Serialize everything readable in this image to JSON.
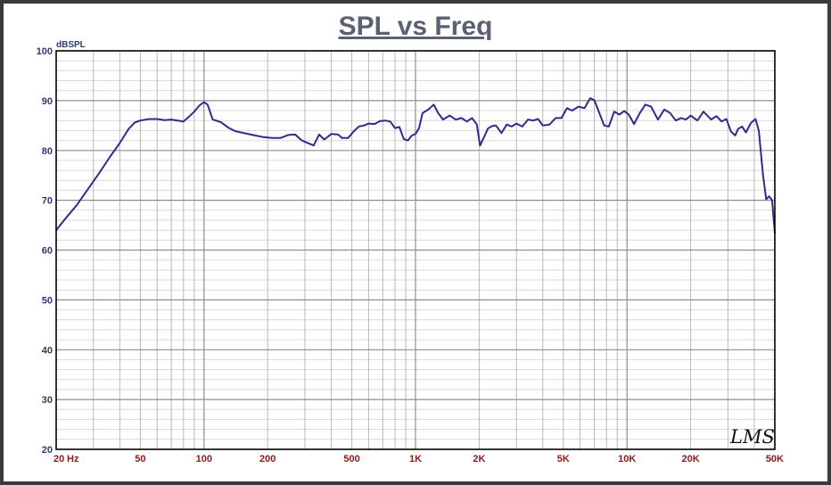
{
  "chart_data": {
    "type": "line",
    "title": "SPL vs Freq",
    "ylabel": "dBSPL",
    "x_unit": "Hz",
    "x_scale": "log",
    "xlim": [
      20,
      50000
    ],
    "ylim": [
      20,
      100
    ],
    "y_ticks": [
      20,
      30,
      40,
      50,
      60,
      70,
      80,
      90,
      100
    ],
    "x_ticks": [
      {
        "value": 20,
        "label": "20"
      },
      {
        "value": 50,
        "label": "50"
      },
      {
        "value": 100,
        "label": "100"
      },
      {
        "value": 200,
        "label": "200"
      },
      {
        "value": 500,
        "label": "500"
      },
      {
        "value": 1000,
        "label": "1K"
      },
      {
        "value": 2000,
        "label": "2K"
      },
      {
        "value": 5000,
        "label": "5K"
      },
      {
        "value": 10000,
        "label": "10K"
      },
      {
        "value": 20000,
        "label": "20K"
      },
      {
        "value": 50000,
        "label": "50K"
      }
    ],
    "grid": true,
    "series": [
      {
        "color": "#2e2e8a",
        "points": [
          [
            20,
            64.0
          ],
          [
            22,
            66.2
          ],
          [
            25,
            69.0
          ],
          [
            28,
            72.0
          ],
          [
            32,
            75.5
          ],
          [
            36,
            78.8
          ],
          [
            40,
            81.5
          ],
          [
            44,
            84.3
          ],
          [
            47,
            85.6
          ],
          [
            50,
            86.0
          ],
          [
            55,
            86.3
          ],
          [
            60,
            86.3
          ],
          [
            65,
            86.1
          ],
          [
            70,
            86.2
          ],
          [
            75,
            86.0
          ],
          [
            80,
            85.8
          ],
          [
            85,
            86.8
          ],
          [
            90,
            87.8
          ],
          [
            95,
            89.0
          ],
          [
            100,
            89.7
          ],
          [
            104,
            89.2
          ],
          [
            110,
            86.2
          ],
          [
            120,
            85.7
          ],
          [
            130,
            84.6
          ],
          [
            140,
            83.9
          ],
          [
            150,
            83.6
          ],
          [
            170,
            83.1
          ],
          [
            190,
            82.7
          ],
          [
            210,
            82.5
          ],
          [
            230,
            82.5
          ],
          [
            250,
            83.1
          ],
          [
            270,
            83.2
          ],
          [
            290,
            82.0
          ],
          [
            310,
            81.5
          ],
          [
            330,
            81.0
          ],
          [
            350,
            83.2
          ],
          [
            370,
            82.2
          ],
          [
            400,
            83.3
          ],
          [
            430,
            83.2
          ],
          [
            450,
            82.5
          ],
          [
            480,
            82.5
          ],
          [
            510,
            83.8
          ],
          [
            540,
            84.8
          ],
          [
            570,
            85.0
          ],
          [
            600,
            85.4
          ],
          [
            640,
            85.3
          ],
          [
            680,
            85.9
          ],
          [
            720,
            86.0
          ],
          [
            760,
            85.8
          ],
          [
            800,
            84.5
          ],
          [
            840,
            84.7
          ],
          [
            880,
            82.3
          ],
          [
            920,
            82.0
          ],
          [
            960,
            83.0
          ],
          [
            1000,
            83.3
          ],
          [
            1040,
            84.5
          ],
          [
            1080,
            87.5
          ],
          [
            1150,
            88.2
          ],
          [
            1220,
            89.2
          ],
          [
            1280,
            87.5
          ],
          [
            1350,
            86.2
          ],
          [
            1450,
            87.0
          ],
          [
            1550,
            86.2
          ],
          [
            1650,
            86.5
          ],
          [
            1750,
            85.8
          ],
          [
            1850,
            86.5
          ],
          [
            1950,
            85.2
          ],
          [
            2020,
            81.0
          ],
          [
            2100,
            82.5
          ],
          [
            2200,
            84.4
          ],
          [
            2300,
            84.9
          ],
          [
            2400,
            85.0
          ],
          [
            2550,
            83.5
          ],
          [
            2700,
            85.2
          ],
          [
            2850,
            84.8
          ],
          [
            3000,
            85.4
          ],
          [
            3200,
            84.8
          ],
          [
            3400,
            86.2
          ],
          [
            3600,
            86.0
          ],
          [
            3800,
            86.3
          ],
          [
            4000,
            85.0
          ],
          [
            4300,
            85.2
          ],
          [
            4600,
            86.5
          ],
          [
            4900,
            86.5
          ],
          [
            5200,
            88.5
          ],
          [
            5500,
            88.0
          ],
          [
            5900,
            88.8
          ],
          [
            6300,
            88.5
          ],
          [
            6700,
            90.5
          ],
          [
            7000,
            90.1
          ],
          [
            7400,
            87.5
          ],
          [
            7800,
            85.0
          ],
          [
            8200,
            84.8
          ],
          [
            8700,
            87.8
          ],
          [
            9200,
            87.2
          ],
          [
            9700,
            87.9
          ],
          [
            10200,
            87.2
          ],
          [
            10800,
            85.3
          ],
          [
            11500,
            87.5
          ],
          [
            12200,
            89.2
          ],
          [
            13000,
            88.8
          ],
          [
            14000,
            86.2
          ],
          [
            15000,
            88.2
          ],
          [
            16000,
            87.5
          ],
          [
            17000,
            86.0
          ],
          [
            18000,
            86.5
          ],
          [
            19000,
            86.2
          ],
          [
            20000,
            87.0
          ],
          [
            21500,
            86.0
          ],
          [
            23000,
            87.8
          ],
          [
            25000,
            86.2
          ],
          [
            26500,
            86.9
          ],
          [
            28000,
            85.8
          ],
          [
            29500,
            86.3
          ],
          [
            31000,
            83.8
          ],
          [
            32500,
            83.0
          ],
          [
            33500,
            84.3
          ],
          [
            35000,
            84.8
          ],
          [
            36500,
            83.6
          ],
          [
            38500,
            85.5
          ],
          [
            40500,
            86.3
          ],
          [
            42000,
            84.0
          ],
          [
            44000,
            75.0
          ],
          [
            45500,
            70.2
          ],
          [
            47000,
            70.8
          ],
          [
            48500,
            70.0
          ],
          [
            50000,
            63.5
          ]
        ]
      }
    ]
  },
  "logo_text": "LMS"
}
